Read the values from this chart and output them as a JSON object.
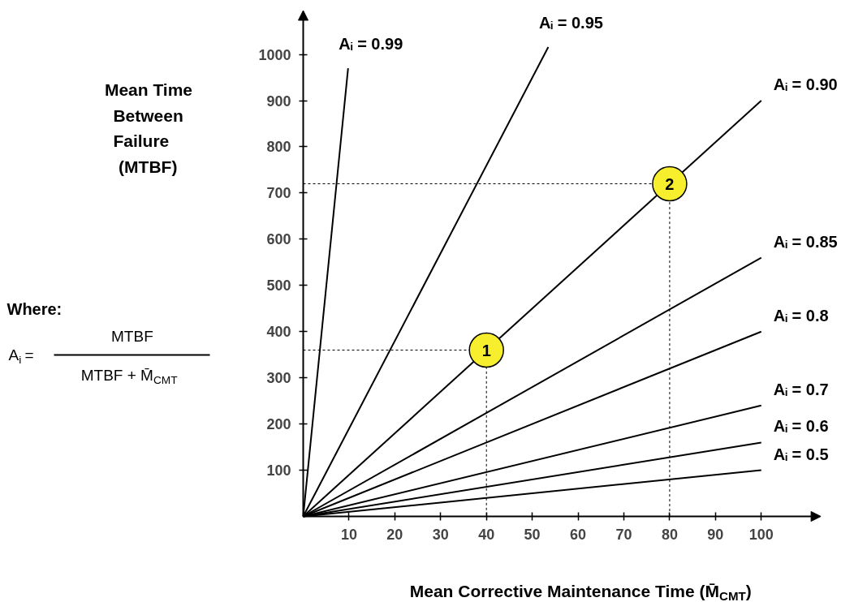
{
  "chart_data": {
    "type": "line",
    "xlabel": "Mean Corrective Maintenance Time (M̄$_{CMT}$)",
    "ylabel": "Mean Time Between Failure (MTBF)",
    "xlim": [
      0,
      113
    ],
    "ylim": [
      0,
      1095
    ],
    "xticks": [
      10,
      20,
      30,
      40,
      50,
      60,
      70,
      80,
      90,
      100
    ],
    "yticks": [
      100,
      200,
      300,
      400,
      500,
      600,
      700,
      800,
      900,
      1000
    ],
    "grid": false,
    "line_style": "solid",
    "series": [
      {
        "name": "Aᵢ = 0.99",
        "color": "#000000",
        "x": [
          0,
          9.8
        ],
        "values": [
          0,
          970
        ]
      },
      {
        "name": "Aᵢ = 0.95",
        "color": "#000000",
        "x": [
          0,
          53.5
        ],
        "values": [
          0,
          1016
        ]
      },
      {
        "name": "Aᵢ = 0.90",
        "color": "#000000",
        "x": [
          0,
          100
        ],
        "values": [
          0,
          900
        ]
      },
      {
        "name": "Aᵢ = 0.85",
        "color": "#000000",
        "x": [
          0,
          100
        ],
        "values": [
          0,
          560
        ]
      },
      {
        "name": "Aᵢ = 0.8",
        "color": "#000000",
        "x": [
          0,
          100
        ],
        "values": [
          0,
          400
        ]
      },
      {
        "name": "Aᵢ = 0.7",
        "color": "#000000",
        "x": [
          0,
          100
        ],
        "values": [
          0,
          240
        ]
      },
      {
        "name": "Aᵢ = 0.6",
        "color": "#000000",
        "x": [
          0,
          100
        ],
        "values": [
          0,
          160
        ]
      },
      {
        "name": "Aᵢ = 0.5",
        "color": "#000000",
        "x": [
          0,
          100
        ],
        "values": [
          0,
          100
        ]
      },
      {
        "type": "line",
        "color": "#000000",
        "line_style": "dashed",
        "x": [
          0,
          40,
          40
        ],
        "values": [
          360,
          360,
          0
        ]
      },
      {
        "type": "line",
        "color": "#000000",
        "line_style": "dashed",
        "x": [
          0,
          80,
          80
        ],
        "values": [
          720,
          720,
          0
        ]
      }
    ],
    "annotations": [
      {
        "text": "1",
        "x": 40,
        "y": 360
      },
      {
        "text": "2",
        "x": 80,
        "y": 720
      },
      "Where:",
      "A$_{i}$ =",
      "MTBF",
      "MTBF + M̄$_{CMT}$"
    ]
  }
}
